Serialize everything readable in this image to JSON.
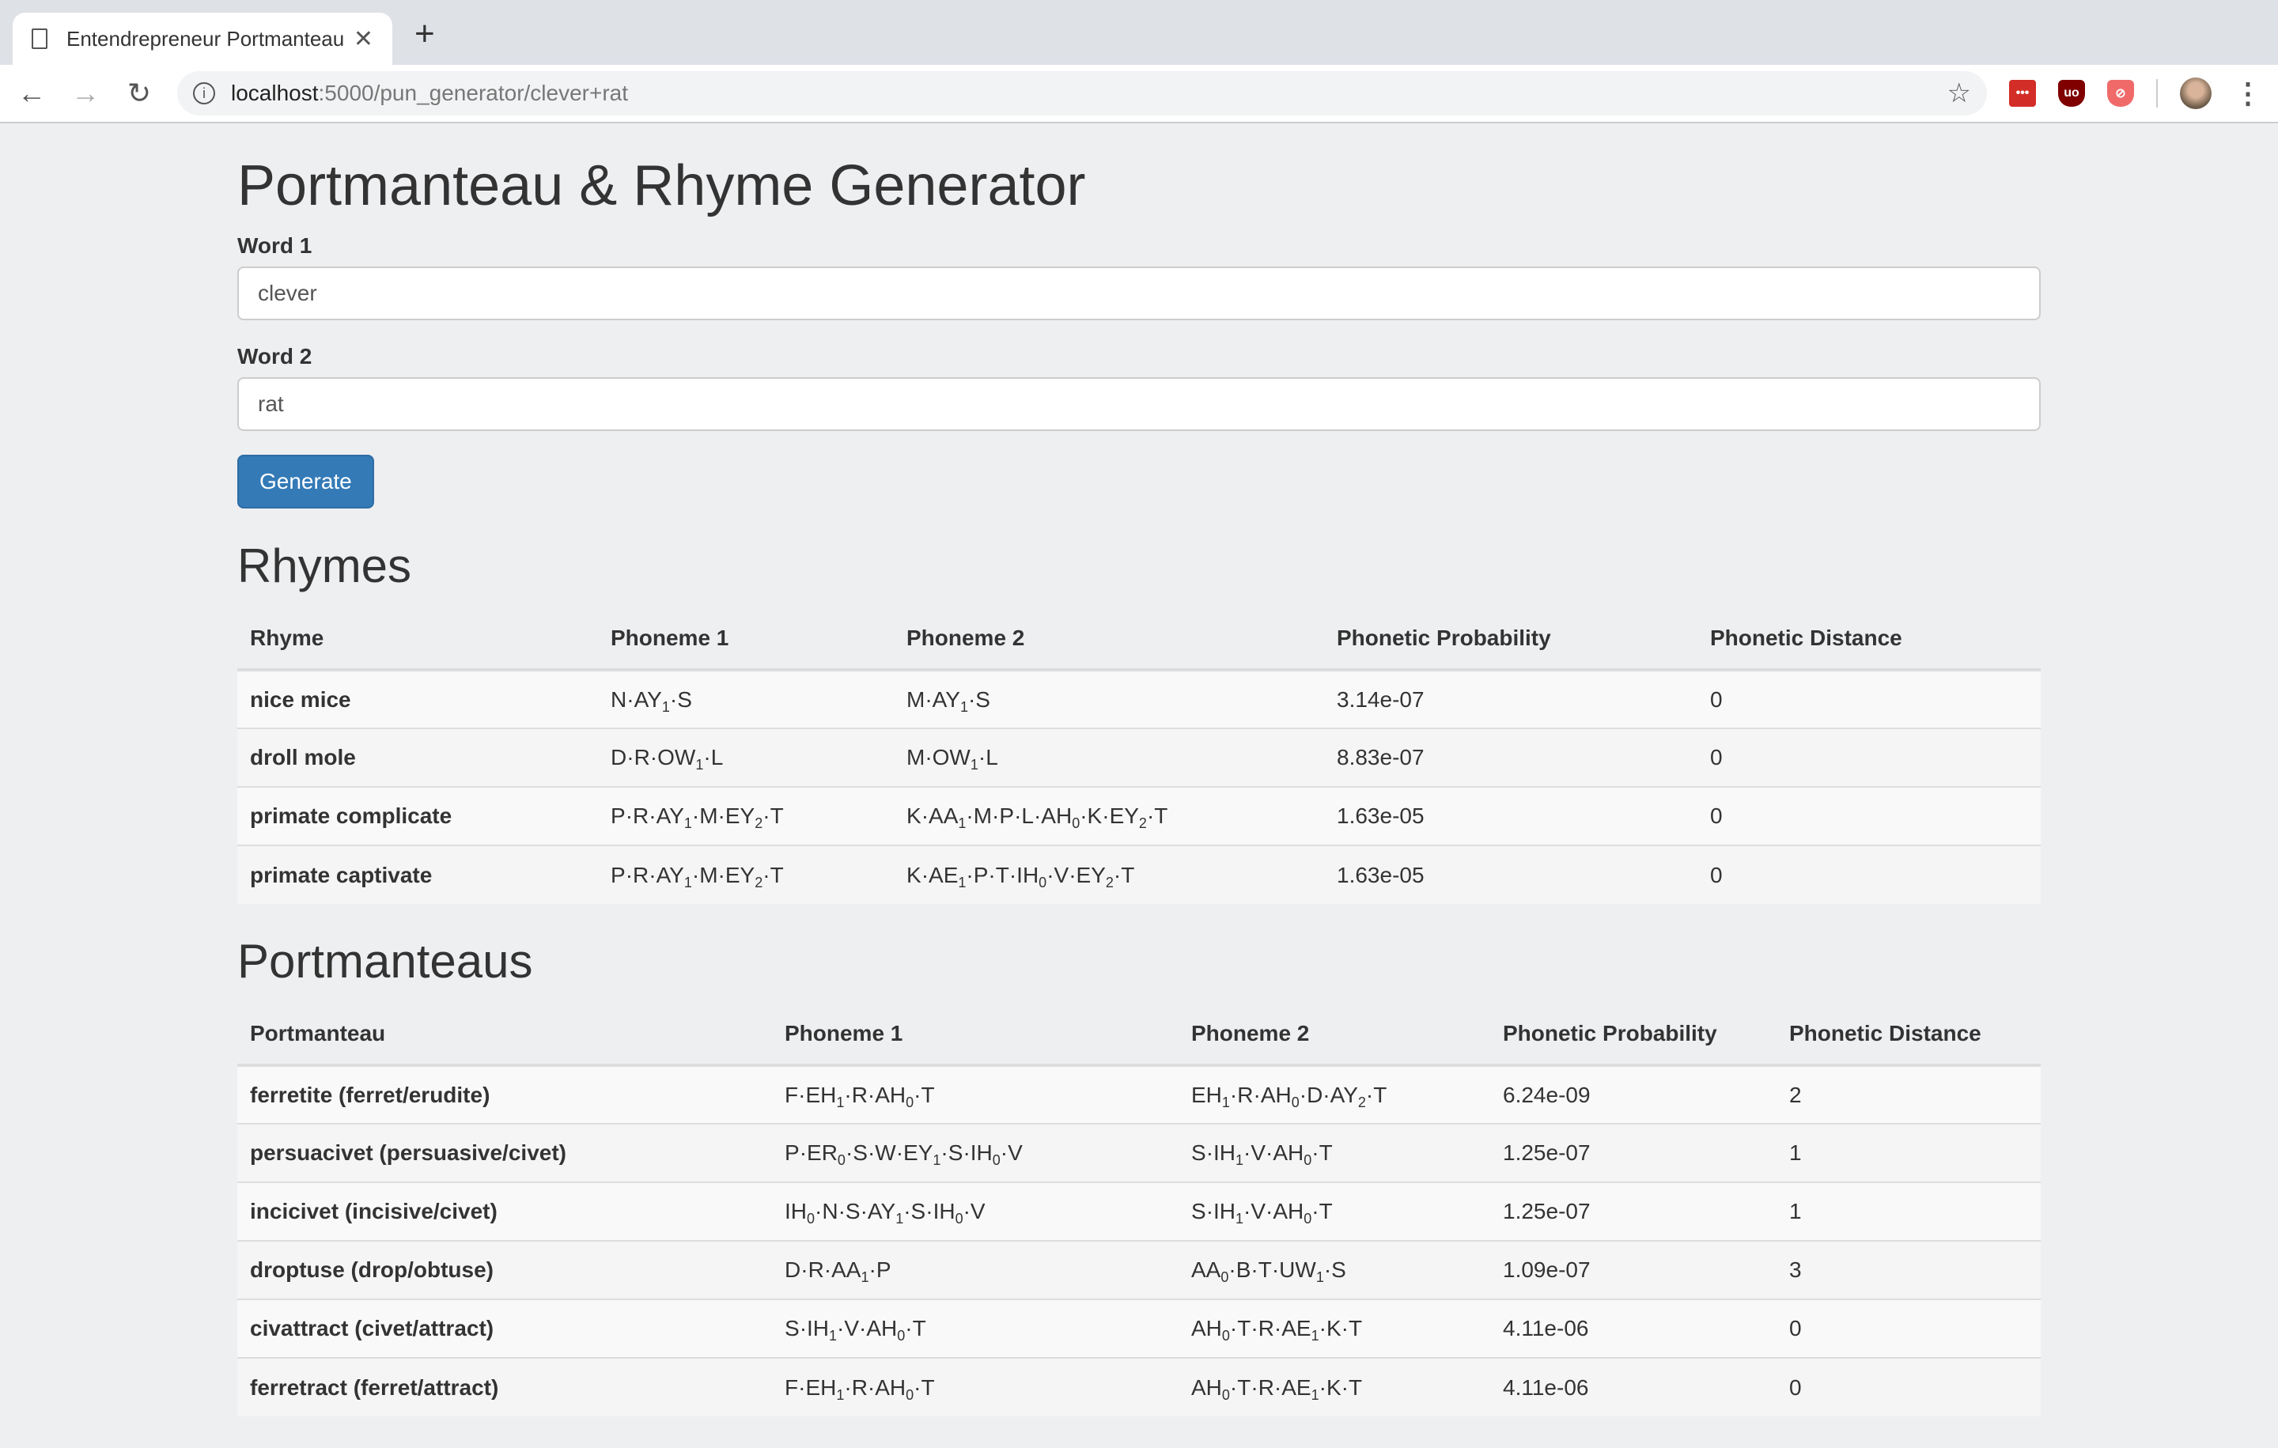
{
  "browser": {
    "tab_title": "Entendrepreneur Portmanteau",
    "url_host": "localhost",
    "url_path": ":5000/pun_generator/clever+rat"
  },
  "page": {
    "title": "Portmanteau & Rhyme Generator",
    "word1_label": "Word 1",
    "word1_value": "clever",
    "word2_label": "Word 2",
    "word2_value": "rat",
    "generate_label": "Generate"
  },
  "rhymes": {
    "heading": "Rhymes",
    "columns": [
      "Rhyme",
      "Phoneme 1",
      "Phoneme 2",
      "Phonetic Probability",
      "Phonetic Distance"
    ],
    "rows": [
      [
        "nice mice",
        "N·AY1·S",
        "M·AY1·S",
        "3.14e-07",
        "0"
      ],
      [
        "droll mole",
        "D·R·OW1·L",
        "M·OW1·L",
        "8.83e-07",
        "0"
      ],
      [
        "primate complicate",
        "P·R·AY1·M·EY2·T",
        "K·AA1·M·P·L·AH0·K·EY2·T",
        "1.63e-05",
        "0"
      ],
      [
        "primate captivate",
        "P·R·AY1·M·EY2·T",
        "K·AE1·P·T·IH0·V·EY2·T",
        "1.63e-05",
        "0"
      ]
    ]
  },
  "portmanteaus": {
    "heading": "Portmanteaus",
    "columns": [
      "Portmanteau",
      "Phoneme 1",
      "Phoneme 2",
      "Phonetic Probability",
      "Phonetic Distance"
    ],
    "rows": [
      [
        "ferretite (ferret/erudite)",
        "F·EH1·R·AH0·T",
        "EH1·R·AH0·D·AY2·T",
        "6.24e-09",
        "2"
      ],
      [
        "persuacivet (persuasive/civet)",
        "P·ER0·S·W·EY1·S·IH0·V",
        "S·IH1·V·AH0·T",
        "1.25e-07",
        "1"
      ],
      [
        "incicivet (incisive/civet)",
        "IH0·N·S·AY1·S·IH0·V",
        "S·IH1·V·AH0·T",
        "1.25e-07",
        "1"
      ],
      [
        "droptuse (drop/obtuse)",
        "D·R·AA1·P",
        "AA0·B·T·UW1·S",
        "1.09e-07",
        "3"
      ],
      [
        "civattract (civet/attract)",
        "S·IH1·V·AH0·T",
        "AH0·T·R·AE1·K·T",
        "4.11e-06",
        "0"
      ],
      [
        "ferretract (ferret/attract)",
        "F·EH1·R·AH0·T",
        "AH0·T·R·AE1·K·T",
        "4.11e-06",
        "0"
      ]
    ]
  },
  "colors": {
    "primary": "#337ab7",
    "lastpass": "#d32d27",
    "ublock": "#800000",
    "blocker": "#f06a6a"
  },
  "icons": [
    "document-icon",
    "close-icon",
    "plus-icon",
    "back-icon",
    "forward-icon",
    "reload-icon",
    "info-icon",
    "star-icon",
    "lastpass-icon",
    "ublock-icon",
    "blocker-icon",
    "avatar",
    "menu-icon"
  ]
}
